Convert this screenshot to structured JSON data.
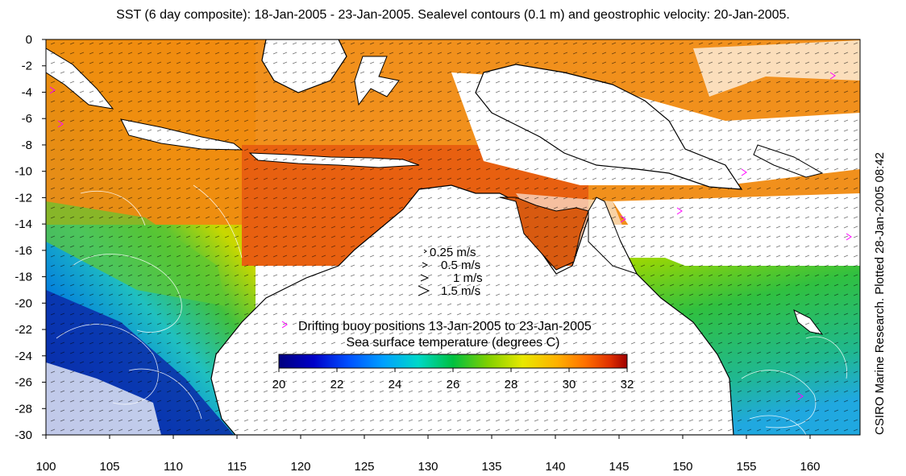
{
  "title": "SST (6 day composite): 18-Jan-2005 - 23-Jan-2005. Sealevel contours (0.1 m) and geostrophic velocity: 20-Jan-2005.",
  "credit": "CSIRO Marine Research. Plotted 28-Jan-2005 08:42",
  "axes": {
    "x_ticks": [
      "100",
      "105",
      "110",
      "115",
      "120",
      "125",
      "130",
      "135",
      "140",
      "145",
      "150",
      "155",
      "160"
    ],
    "y_ticks": [
      "0",
      "-2",
      "-4",
      "-6",
      "-8",
      "-10",
      "-12",
      "-14",
      "-16",
      "-18",
      "-20",
      "-22",
      "-24",
      "-26",
      "-28",
      "-30"
    ]
  },
  "velocity_legend": [
    {
      "label": "0.25 m/s"
    },
    {
      "label": "0.5 m/s"
    },
    {
      "label": "1 m/s"
    },
    {
      "label": "1.5 m/s"
    }
  ],
  "buoy_legend": {
    "marker": ">",
    "label": "Drifting buoy positions 13-Jan-2005 to 23-Jan-2005"
  },
  "colorbar": {
    "title": "Sea surface temperature (degrees C)",
    "ticks": [
      "20",
      "22",
      "24",
      "26",
      "28",
      "30",
      "32"
    ],
    "stops": [
      "#00007f",
      "#0000c8",
      "#0050ff",
      "#00a0ff",
      "#00d8c8",
      "#00c040",
      "#80d000",
      "#e8e800",
      "#ffb000",
      "#ff7000",
      "#e03000",
      "#a00000"
    ]
  },
  "colors": {
    "land": "#ffffff",
    "contour": "#ffffff",
    "coast": "#000000",
    "buoy": "#ff00ff"
  }
}
